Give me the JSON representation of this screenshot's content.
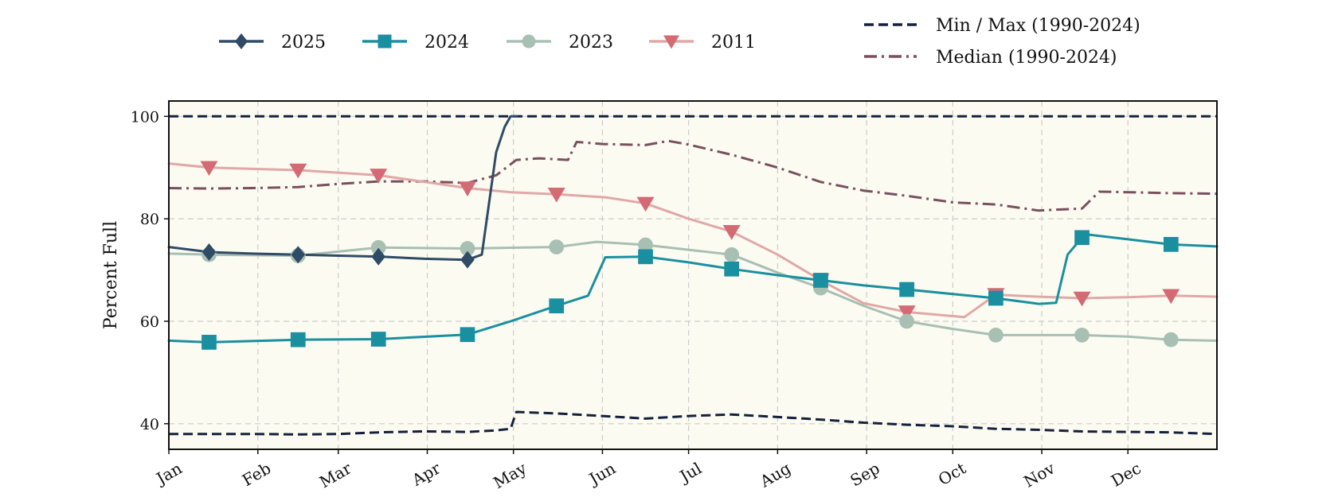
{
  "chart_data": {
    "type": "line",
    "ylabel": "Percent Full",
    "xlabel": "",
    "ylim": [
      35,
      103
    ],
    "y_ticks": [
      40,
      60,
      80,
      100
    ],
    "x_tick_labels": [
      "Jan",
      "Feb",
      "Mar",
      "Apr",
      "May",
      "Jun",
      "Jul",
      "Aug",
      "Sep",
      "Oct",
      "Nov",
      "Dec"
    ],
    "x_unit": "day of year",
    "x_range": [
      1,
      366
    ],
    "grid": true,
    "legend_position": "top (above plot)",
    "plot_background": "#fbfbf1",
    "series": [
      {
        "name": "2025",
        "color": "#2f4b66",
        "marker": "diamond",
        "x": [
          1,
          15,
          30,
          46,
          60,
          75,
          90,
          105,
          110,
          113,
          115,
          118,
          120,
          122
        ],
        "y": [
          74.5,
          73.5,
          73.2,
          73.0,
          72.8,
          72.6,
          72.2,
          72.0,
          73.0,
          85.0,
          93.0,
          98.0,
          100.0,
          100.0
        ]
      },
      {
        "name": "2024",
        "color": "#1a8fa0",
        "marker": "square",
        "x": [
          1,
          15,
          46,
          74,
          105,
          120,
          136,
          147,
          153,
          167,
          182,
          197,
          213,
          228,
          243,
          258,
          274,
          289,
          304,
          310,
          314,
          320,
          335,
          350,
          366
        ],
        "y": [
          56.2,
          55.9,
          56.4,
          56.5,
          57.4,
          60.0,
          63.0,
          65.0,
          72.5,
          72.6,
          71.5,
          70.2,
          69.0,
          68.0,
          67.0,
          66.2,
          65.3,
          64.5,
          63.4,
          63.6,
          73.0,
          77.0,
          76.0,
          75.0,
          74.6
        ]
      },
      {
        "name": "2023",
        "color": "#a8bfb4",
        "marker": "circle",
        "x": [
          1,
          15,
          46,
          74,
          105,
          136,
          150,
          167,
          197,
          213,
          228,
          243,
          258,
          274,
          289,
          304,
          319,
          335,
          350,
          366
        ],
        "y": [
          73.2,
          73.0,
          72.8,
          74.4,
          74.2,
          74.5,
          75.5,
          74.9,
          73.0,
          69.5,
          66.5,
          63.0,
          60.0,
          58.5,
          57.3,
          57.3,
          57.3,
          57.0,
          56.4,
          56.2
        ]
      },
      {
        "name": "2011",
        "color": "#e0a8a6",
        "marker_color": "#d46b74",
        "marker": "triangle-down",
        "x": [
          1,
          15,
          46,
          74,
          105,
          120,
          136,
          153,
          167,
          182,
          197,
          213,
          228,
          243,
          258,
          274,
          278,
          289,
          304,
          319,
          335,
          350,
          366
        ],
        "y": [
          90.8,
          90.0,
          89.5,
          88.5,
          86.0,
          85.2,
          84.8,
          84.2,
          83.0,
          80.0,
          77.5,
          73.0,
          68.0,
          63.5,
          61.8,
          61.0,
          60.8,
          65.2,
          64.8,
          64.5,
          64.7,
          65.0,
          64.8
        ]
      },
      {
        "name": "Min / Max (1990-2024)",
        "color": "#14213d",
        "style": "dashed",
        "parts": [
          {
            "x": [
              1,
              366
            ],
            "y": [
              100,
              100
            ]
          },
          {
            "x": [
              1,
              30,
              46,
              60,
              74,
              90,
              105,
              115,
              120,
              122,
              136,
              152,
              167,
              182,
              197,
              213,
              228,
              243,
              258,
              274,
              289,
              304,
              319,
              335,
              350,
              366
            ],
            "y": [
              38.0,
              38.0,
              37.9,
              38.0,
              38.3,
              38.5,
              38.4,
              38.7,
              39.0,
              42.3,
              42.0,
              41.5,
              41.0,
              41.5,
              41.8,
              41.3,
              40.8,
              40.2,
              39.8,
              39.5,
              39.0,
              38.8,
              38.5,
              38.4,
              38.3,
              38.0
            ]
          }
        ]
      },
      {
        "name": "Median (1990-2024)",
        "color": "#7a4f5e",
        "style": "dashdot",
        "x": [
          1,
          15,
          30,
          46,
          60,
          74,
          90,
          105,
          115,
          122,
          130,
          140,
          143,
          152,
          167,
          175,
          182,
          197,
          213,
          228,
          243,
          258,
          274,
          289,
          304,
          310,
          319,
          325,
          335,
          350,
          366
        ],
        "y": [
          86.0,
          85.9,
          86.0,
          86.2,
          86.8,
          87.3,
          87.3,
          87.0,
          88.5,
          91.5,
          91.8,
          91.5,
          95.0,
          94.6,
          94.4,
          95.2,
          94.5,
          92.5,
          90.0,
          87.2,
          85.5,
          84.5,
          83.2,
          82.8,
          81.6,
          81.8,
          82.0,
          85.3,
          85.2,
          85.0,
          84.9
        ]
      }
    ]
  }
}
